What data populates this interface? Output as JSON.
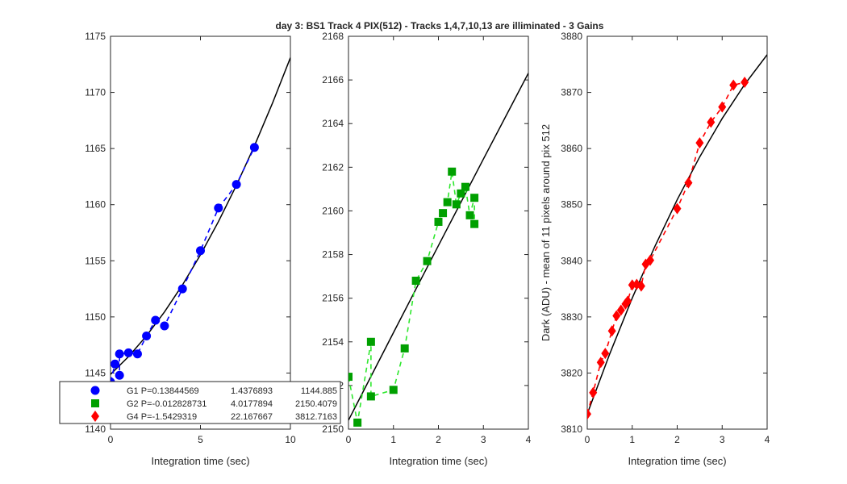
{
  "figure": {
    "title": "day 3: BS1  Track 4 PIX(512) - Tracks 1,4,7,10,13 are illiminated - 3 Gains"
  },
  "chart_data": [
    {
      "type": "scatter",
      "xlabel": "Integration time (sec)",
      "ylabel": "",
      "xlim": [
        0,
        10
      ],
      "ylim": [
        1140,
        1175
      ],
      "xticks": [
        "0",
        "5",
        "10"
      ],
      "yticks": [
        "1140",
        "1145",
        "1150",
        "1155",
        "1160",
        "1165",
        "1170",
        "1175"
      ],
      "color": "#0000ff",
      "marker": "circle",
      "points": {
        "x": [
          0.0,
          0.25,
          0.5,
          0.5,
          1.0,
          1.5,
          2.0,
          2.5,
          3.0,
          4.0,
          5.0,
          6.0,
          7.0,
          8.0
        ],
        "y": [
          1144.2,
          1145.8,
          1144.8,
          1146.7,
          1146.8,
          1146.7,
          1148.3,
          1149.7,
          1149.2,
          1152.5,
          1155.9,
          1159.7,
          1161.8,
          1165.1
        ]
      },
      "fit": {
        "x": [
          0,
          1,
          2,
          3,
          4,
          5,
          6,
          7,
          8,
          9,
          10
        ],
        "y": [
          1144.885,
          1146.461,
          1148.314,
          1150.444,
          1152.85,
          1155.532,
          1158.491,
          1161.727,
          1165.239,
          1169.028,
          1173.094
        ]
      }
    },
    {
      "type": "scatter",
      "xlabel": "Integration time (sec)",
      "ylabel": "",
      "xlim": [
        0,
        4
      ],
      "ylim": [
        2150,
        2168
      ],
      "xticks": [
        "0",
        "1",
        "2",
        "3",
        "4"
      ],
      "yticks": [
        "2150",
        "2152",
        "2154",
        "2156",
        "2158",
        "2160",
        "2162",
        "2164",
        "2166",
        "2168"
      ],
      "color": "#00a000",
      "dash_color": "#2ee82e",
      "marker": "square",
      "points": {
        "x": [
          0.0,
          0.2,
          0.5,
          0.5,
          1.0,
          1.25,
          1.5,
          1.75,
          2.0,
          2.1,
          2.2,
          2.3,
          2.4,
          2.5,
          2.6,
          2.7,
          2.8,
          2.8
        ],
        "y": [
          2152.4,
          2150.3,
          2154.0,
          2151.5,
          2151.8,
          2153.7,
          2156.8,
          2157.7,
          2159.5,
          2159.9,
          2160.4,
          2161.8,
          2160.3,
          2160.8,
          2161.1,
          2159.8,
          2160.6,
          2159.4
        ]
      },
      "fit": {
        "x": [
          0,
          1,
          2,
          3,
          4
        ],
        "y": [
          2150.408,
          2154.422,
          2158.411,
          2162.374,
          2166.312
        ]
      }
    },
    {
      "type": "scatter",
      "xlabel": "Integration time (sec)",
      "ylabel": "Dark (ADU) - mean of 11 pixels around pix 512",
      "xlim": [
        0,
        4
      ],
      "ylim": [
        3810,
        3880
      ],
      "xticks": [
        "0",
        "1",
        "2",
        "3",
        "4"
      ],
      "yticks": [
        "3810",
        "3820",
        "3830",
        "3840",
        "3850",
        "3860",
        "3870",
        "3880"
      ],
      "color": "#ff0000",
      "marker": "diamond",
      "points": {
        "x": [
          0.0,
          0.13,
          0.3,
          0.4,
          0.55,
          0.65,
          0.75,
          0.85,
          0.9,
          1.0,
          1.1,
          1.2,
          1.3,
          1.4,
          2.0,
          2.25,
          2.5,
          2.75,
          3.0,
          3.25,
          3.5
        ],
        "y": [
          3812.7,
          3816.5,
          3821.9,
          3823.5,
          3827.5,
          3830.2,
          3831.2,
          3832.3,
          3832.8,
          3835.7,
          3835.8,
          3835.5,
          3839.4,
          3840.1,
          3849.3,
          3853.9,
          3861.0,
          3864.7,
          3867.4,
          3871.3,
          3871.8
        ]
      },
      "fit": {
        "x": [
          0,
          0.5,
          1,
          1.5,
          2,
          2.5,
          3,
          3.5,
          4
        ],
        "y": [
          3812.716,
          3823.416,
          3833.345,
          3842.502,
          3850.888,
          3858.502,
          3865.345,
          3871.416,
          3876.716
        ]
      }
    }
  ],
  "legend": {
    "placement": "bottom-left",
    "entries": [
      {
        "marker": "circle",
        "color": "#0000ff",
        "label": "G1 P=0.13844569",
        "v1": "1.4376893",
        "v2": "1144.885"
      },
      {
        "marker": "square",
        "color": "#00a000",
        "label": "G2 P=-0.012828731",
        "v1": "4.0177894",
        "v2": "2150.4079"
      },
      {
        "marker": "diamond",
        "color": "#ff0000",
        "label": "G4 P=-1.5429319",
        "v1": "22.167667",
        "v2": "3812.7163"
      }
    ]
  }
}
